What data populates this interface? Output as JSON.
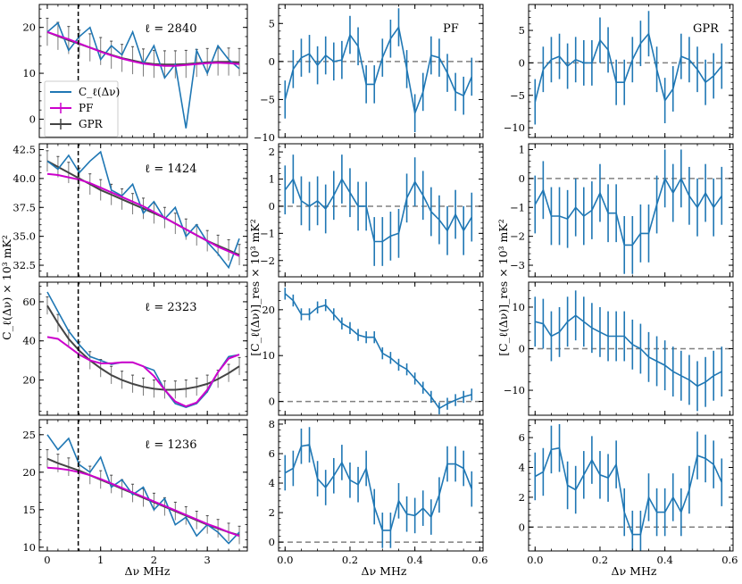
{
  "figure": {
    "xlabel": "Δν MHz",
    "ylabel_left": "C_ℓ(Δν) × 10³ mK²",
    "ylabel_mid": "[C_ℓ(Δν)]_res × 10³ mK²",
    "ylabel_right": "[C_ℓ(Δν)]_res × 10³ mK²"
  },
  "legend": {
    "cl_label": "C_ℓ(Δν)",
    "pf_label": "PF",
    "gpr_label": "GPR"
  },
  "colors": {
    "data": "#1f77b4",
    "pf": "#cc00cc",
    "gpr": "#444444",
    "zero_line": "#808080",
    "cut_line": "#000000"
  },
  "chart_data": [
    {
      "type": "line",
      "row": 0,
      "col": 0,
      "annotation": "ℓ = 2840",
      "cut_x": 0.58,
      "xlim": [
        -0.15,
        3.75
      ],
      "ylim": [
        -4,
        25
      ],
      "xticks": [
        "0",
        "1",
        "2",
        "3"
      ],
      "yticks": [
        0,
        10,
        20
      ],
      "x": [
        0,
        0.2,
        0.4,
        0.6,
        0.8,
        1.0,
        1.2,
        1.4,
        1.6,
        1.8,
        2.0,
        2.2,
        2.4,
        2.6,
        2.8,
        3.0,
        3.2,
        3.4,
        3.6
      ],
      "series": [
        {
          "name": "C_ℓ(Δν)",
          "values": [
            19,
            21,
            15,
            18,
            20,
            13,
            16,
            14,
            19,
            12,
            16,
            9,
            12,
            -2,
            15,
            10,
            16,
            13,
            11
          ]
        },
        {
          "name": "PF",
          "values": [
            19,
            18.2,
            17.4,
            16.5,
            15.6,
            14.7,
            13.9,
            13.2,
            12.6,
            12.1,
            11.8,
            11.6,
            11.6,
            11.8,
            12.0,
            12.2,
            12.3,
            12.2,
            12.0
          ]
        },
        {
          "name": "GPR",
          "values": [
            19,
            18.1,
            17.2,
            16.4,
            15.6,
            14.8,
            14.0,
            13.3,
            12.8,
            12.3,
            12.0,
            11.9,
            11.9,
            12.0,
            12.2,
            12.4,
            12.5,
            12.5,
            12.4
          ],
          "error": 3.0
        }
      ]
    },
    {
      "type": "line",
      "row": 0,
      "col": 1,
      "annotation": "PF",
      "xlim": [
        -0.02,
        0.61
      ],
      "ylim": [
        -10,
        7.5
      ],
      "xticks": [
        "0.0",
        "0.2",
        "0.4",
        "0.6"
      ],
      "yticks": [
        -10,
        -5,
        0,
        5
      ],
      "x": [
        0.0,
        0.025,
        0.05,
        0.075,
        0.1,
        0.125,
        0.15,
        0.175,
        0.2,
        0.225,
        0.25,
        0.275,
        0.3,
        0.325,
        0.35,
        0.375,
        0.4,
        0.425,
        0.45,
        0.475,
        0.5,
        0.525,
        0.55,
        0.575
      ],
      "series": [
        {
          "name": "residual",
          "values": [
            -5.0,
            -1.0,
            0.5,
            1.0,
            -0.5,
            0.8,
            0.0,
            0.2,
            3.5,
            2.0,
            -3.0,
            -3.0,
            0.5,
            3.0,
            4.5,
            -1.0,
            -6.8,
            -4.0,
            0.8,
            0.5,
            -1.5,
            -4.0,
            -4.5,
            -2.0
          ],
          "error": 2.5
        }
      ]
    },
    {
      "type": "line",
      "row": 0,
      "col": 2,
      "annotation": "GPR",
      "xlim": [
        -0.02,
        0.61
      ],
      "ylim": [
        -11.5,
        9
      ],
      "xticks": [
        "0.0",
        "0.2",
        "0.4",
        "0.6"
      ],
      "yticks": [
        -10,
        -5,
        0,
        5
      ],
      "x": [
        0.0,
        0.025,
        0.05,
        0.075,
        0.1,
        0.125,
        0.15,
        0.175,
        0.2,
        0.225,
        0.25,
        0.275,
        0.3,
        0.325,
        0.35,
        0.375,
        0.4,
        0.425,
        0.45,
        0.475,
        0.5,
        0.525,
        0.55,
        0.575
      ],
      "series": [
        {
          "name": "residual",
          "values": [
            -6.0,
            -1.0,
            0.5,
            1.0,
            -0.5,
            0.5,
            0.0,
            0.0,
            3.5,
            2.0,
            -3.0,
            -3.0,
            0.5,
            3.0,
            4.5,
            -1.0,
            -5.8,
            -4.0,
            1.0,
            0.5,
            -1.0,
            -3.0,
            -2.0,
            -0.5
          ],
          "error": 3.5
        }
      ]
    },
    {
      "type": "line",
      "row": 1,
      "col": 0,
      "annotation": "ℓ = 1424",
      "cut_x": 0.58,
      "xlim": [
        -0.15,
        3.75
      ],
      "ylim": [
        31.5,
        43
      ],
      "xticks": [
        "0",
        "1",
        "2",
        "3"
      ],
      "yticks": [
        32.5,
        35.0,
        37.5,
        40.0,
        42.5
      ],
      "x": [
        0,
        0.2,
        0.4,
        0.6,
        0.8,
        1.0,
        1.2,
        1.4,
        1.6,
        1.8,
        2.0,
        2.2,
        2.4,
        2.6,
        2.8,
        3.0,
        3.2,
        3.4,
        3.6
      ],
      "series": [
        {
          "name": "C_ℓ(Δν)",
          "values": [
            41.5,
            40.8,
            42.0,
            40.5,
            41.5,
            42.3,
            39.0,
            38.5,
            39.5,
            37.0,
            38.0,
            36.5,
            37.5,
            35.0,
            36.0,
            34.5,
            33.5,
            32.3,
            34.8
          ]
        },
        {
          "name": "PF",
          "values": [
            40.4,
            40.3,
            40.1,
            39.9,
            39.6,
            39.2,
            38.8,
            38.4,
            38.0,
            37.6,
            37.1,
            36.6,
            36.1,
            35.6,
            35.1,
            34.6,
            34.1,
            33.7,
            33.3
          ]
        },
        {
          "name": "GPR",
          "values": [
            41.5,
            41.0,
            40.5,
            40.0,
            39.5,
            39.0,
            38.6,
            38.2,
            37.8,
            37.4,
            37.0,
            36.6,
            36.1,
            35.6,
            35.1,
            34.6,
            34.2,
            33.8,
            33.4
          ],
          "error": 0.9
        }
      ]
    },
    {
      "type": "line",
      "row": 1,
      "col": 1,
      "xlim": [
        -0.02,
        0.61
      ],
      "ylim": [
        -2.6,
        2.3
      ],
      "xticks": [
        "0.0",
        "0.2",
        "0.4",
        "0.6"
      ],
      "yticks": [
        -2,
        -1,
        0,
        1,
        2
      ],
      "x": [
        0.0,
        0.025,
        0.05,
        0.075,
        0.1,
        0.125,
        0.15,
        0.175,
        0.2,
        0.225,
        0.25,
        0.275,
        0.3,
        0.325,
        0.35,
        0.375,
        0.4,
        0.425,
        0.45,
        0.475,
        0.5,
        0.525,
        0.55,
        0.575
      ],
      "series": [
        {
          "name": "residual",
          "values": [
            0.6,
            1.0,
            0.2,
            0.0,
            0.2,
            -0.1,
            0.4,
            1.0,
            0.5,
            0.0,
            0.0,
            -1.3,
            -1.3,
            -1.1,
            -1.0,
            0.3,
            0.9,
            0.4,
            -0.2,
            -0.5,
            -0.9,
            -0.3,
            -0.9,
            -0.4
          ],
          "error": 0.9
        }
      ]
    },
    {
      "type": "line",
      "row": 1,
      "col": 2,
      "xlim": [
        -0.02,
        0.61
      ],
      "ylim": [
        -3.4,
        1.2
      ],
      "xticks": [
        "0.0",
        "0.2",
        "0.4",
        "0.6"
      ],
      "yticks": [
        -3,
        -2,
        -1,
        0,
        1
      ],
      "x": [
        0.0,
        0.025,
        0.05,
        0.075,
        0.1,
        0.125,
        0.15,
        0.175,
        0.2,
        0.225,
        0.25,
        0.275,
        0.3,
        0.325,
        0.35,
        0.375,
        0.4,
        0.425,
        0.45,
        0.475,
        0.5,
        0.525,
        0.55,
        0.575
      ],
      "series": [
        {
          "name": "residual",
          "values": [
            -0.9,
            -0.4,
            -1.3,
            -1.3,
            -1.4,
            -1.0,
            -1.3,
            -1.1,
            -0.5,
            -1.2,
            -1.2,
            -2.3,
            -2.3,
            -1.9,
            -1.9,
            -0.9,
            0.0,
            -0.5,
            0.0,
            -0.6,
            -1.0,
            -0.5,
            -1.0,
            -0.6
          ],
          "error": 1.0
        }
      ]
    },
    {
      "type": "line",
      "row": 2,
      "col": 0,
      "annotation": "ℓ = 2323",
      "cut_x": 0.58,
      "xlim": [
        -0.15,
        3.75
      ],
      "ylim": [
        2,
        70
      ],
      "xticks": [
        "0",
        "1",
        "2",
        "3"
      ],
      "yticks": [
        20,
        40,
        60
      ],
      "x": [
        0,
        0.2,
        0.4,
        0.6,
        0.8,
        1.0,
        1.2,
        1.4,
        1.6,
        1.8,
        2.0,
        2.2,
        2.4,
        2.6,
        2.8,
        3.0,
        3.2,
        3.4,
        3.6
      ],
      "series": [
        {
          "name": "C_ℓ(Δν)",
          "values": [
            65,
            55,
            45,
            38,
            32,
            30,
            28,
            29,
            29,
            27,
            25,
            15,
            8,
            6,
            8,
            14,
            24,
            32,
            33
          ]
        },
        {
          "name": "PF",
          "values": [
            42,
            41,
            37,
            33,
            30,
            28.5,
            28.5,
            29,
            29,
            27,
            22,
            15,
            9,
            6.5,
            8.5,
            15,
            24,
            31,
            33
          ]
        },
        {
          "name": "GPR",
          "values": [
            58,
            49,
            41,
            35,
            30,
            26,
            22.5,
            20,
            18,
            16.5,
            15.5,
            15,
            15,
            15.5,
            16.5,
            18,
            20.5,
            23.5,
            27
          ],
          "error": 4.5
        }
      ]
    },
    {
      "type": "line",
      "row": 2,
      "col": 1,
      "xlim": [
        -0.02,
        0.61
      ],
      "ylim": [
        -3,
        26
      ],
      "xticks": [
        "0.0",
        "0.2",
        "0.4",
        "0.6"
      ],
      "yticks": [
        0,
        10,
        20
      ],
      "x": [
        0.0,
        0.025,
        0.05,
        0.075,
        0.1,
        0.125,
        0.15,
        0.175,
        0.2,
        0.225,
        0.25,
        0.275,
        0.3,
        0.325,
        0.35,
        0.375,
        0.4,
        0.425,
        0.45,
        0.475,
        0.5,
        0.525,
        0.55,
        0.575
      ],
      "series": [
        {
          "name": "residual",
          "values": [
            23.5,
            22,
            19,
            19,
            20.5,
            21,
            19,
            17,
            16,
            14.5,
            14,
            14,
            10.5,
            9.5,
            8,
            7,
            5,
            3,
            1,
            -1.5,
            -0.5,
            0.3,
            1.0,
            1.5
          ],
          "error": 1.3
        }
      ]
    },
    {
      "type": "line",
      "row": 2,
      "col": 2,
      "xlim": [
        -0.02,
        0.61
      ],
      "ylim": [
        -16,
        16
      ],
      "xticks": [
        "0.0",
        "0.2",
        "0.4",
        "0.6"
      ],
      "yticks": [
        -10,
        0,
        10
      ],
      "x": [
        0.0,
        0.025,
        0.05,
        0.075,
        0.1,
        0.125,
        0.15,
        0.175,
        0.2,
        0.225,
        0.25,
        0.275,
        0.3,
        0.325,
        0.35,
        0.375,
        0.4,
        0.425,
        0.45,
        0.475,
        0.5,
        0.525,
        0.55,
        0.575
      ],
      "series": [
        {
          "name": "residual",
          "values": [
            6.5,
            6,
            3,
            4,
            6.5,
            8,
            6.5,
            5,
            4,
            3,
            3,
            3,
            1,
            0,
            -2,
            -3,
            -4,
            -5.5,
            -6.5,
            -7.5,
            -9,
            -8,
            -6.5,
            -5.5
          ],
          "error": 6.0
        }
      ]
    },
    {
      "type": "line",
      "row": 3,
      "col": 0,
      "annotation": "ℓ = 1236",
      "cut_x": 0.58,
      "xlim": [
        -0.15,
        3.75
      ],
      "ylim": [
        9.5,
        27
      ],
      "xticks": [
        "0",
        "1",
        "2",
        "3"
      ],
      "yticks": [
        10,
        15,
        20,
        25
      ],
      "x": [
        0,
        0.2,
        0.4,
        0.6,
        0.8,
        1.0,
        1.2,
        1.4,
        1.6,
        1.8,
        2.0,
        2.2,
        2.4,
        2.6,
        2.8,
        3.0,
        3.2,
        3.4,
        3.6
      ],
      "series": [
        {
          "name": "C_ℓ(Δν)",
          "values": [
            25,
            23,
            24.5,
            21,
            20,
            22,
            18,
            19,
            17,
            18,
            15,
            16.5,
            13,
            14,
            11.5,
            13,
            12,
            10.5,
            12
          ]
        },
        {
          "name": "PF",
          "values": [
            20.6,
            20.5,
            20.3,
            20.0,
            19.6,
            19.1,
            18.5,
            17.9,
            17.3,
            16.7,
            16.1,
            15.5,
            14.9,
            14.3,
            13.7,
            13.1,
            12.6,
            12.0,
            11.5
          ]
        },
        {
          "name": "GPR",
          "values": [
            21.8,
            21.2,
            20.7,
            20.2,
            19.6,
            19.0,
            18.4,
            17.8,
            17.2,
            16.6,
            16.0,
            15.4,
            14.8,
            14.2,
            13.6,
            13.0,
            12.5,
            12.0,
            11.6
          ],
          "error": 1.2
        }
      ]
    },
    {
      "type": "line",
      "row": 3,
      "col": 1,
      "xlim": [
        -0.02,
        0.61
      ],
      "ylim": [
        -0.6,
        8.3
      ],
      "xticks": [
        "0.0",
        "0.2",
        "0.4",
        "0.6"
      ],
      "yticks": [
        0,
        2,
        4,
        6,
        8
      ],
      "x": [
        0.0,
        0.025,
        0.05,
        0.075,
        0.1,
        0.125,
        0.15,
        0.175,
        0.2,
        0.225,
        0.25,
        0.275,
        0.3,
        0.325,
        0.35,
        0.375,
        0.4,
        0.425,
        0.45,
        0.475,
        0.5,
        0.525,
        0.55,
        0.575
      ],
      "series": [
        {
          "name": "residual",
          "values": [
            4.7,
            5.0,
            6.5,
            6.6,
            4.3,
            3.7,
            4.5,
            5.4,
            4.2,
            3.9,
            5.0,
            2.4,
            0.8,
            0.8,
            2.8,
            1.9,
            1.8,
            2.3,
            1.7,
            3.2,
            5.3,
            5.3,
            5.0,
            3.6
          ],
          "error": 1.2
        }
      ]
    },
    {
      "type": "line",
      "row": 3,
      "col": 2,
      "xlim": [
        -0.02,
        0.61
      ],
      "ylim": [
        -1.6,
        7.2
      ],
      "xticks": [
        "0.0",
        "0.2",
        "0.4",
        "0.6"
      ],
      "yticks": [
        0,
        2,
        4,
        6
      ],
      "x": [
        0.0,
        0.025,
        0.05,
        0.075,
        0.1,
        0.125,
        0.15,
        0.175,
        0.2,
        0.225,
        0.25,
        0.275,
        0.3,
        0.325,
        0.35,
        0.375,
        0.4,
        0.425,
        0.45,
        0.475,
        0.5,
        0.525,
        0.55,
        0.575
      ],
      "series": [
        {
          "name": "residual",
          "values": [
            3.4,
            3.7,
            5.2,
            5.3,
            2.8,
            2.5,
            3.5,
            4.5,
            3.5,
            3.3,
            4.2,
            1.0,
            -0.5,
            -0.5,
            2.0,
            1.0,
            1.0,
            2.0,
            1.0,
            2.5,
            4.8,
            4.6,
            4.2,
            3.0
          ],
          "error": 1.6
        }
      ]
    }
  ]
}
